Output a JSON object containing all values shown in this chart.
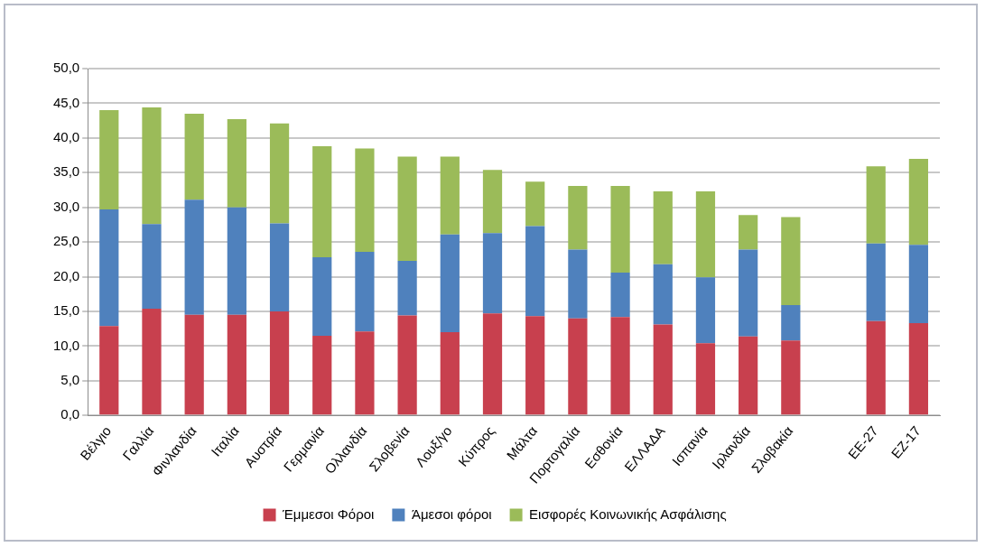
{
  "chart_data": {
    "type": "bar",
    "stacked": true,
    "categories": [
      "Βέλγιο",
      "Γαλλία",
      "Φινλανδία",
      "Ιταλία",
      "Αυστρία",
      "Γερμανία",
      "Ολλανδία",
      "Σλοβενία",
      "Λουξ/γο",
      "Κύπρος",
      "Μάλτα",
      "Πορτογαλία",
      "Εσθονία",
      "ΕΛΛΑΔΑ",
      "Ισπανία",
      "Ιρλανδία",
      "Σλοβακία",
      null,
      "ΕΕ-27",
      "ΕΖ-17"
    ],
    "series": [
      {
        "name": "Έμμεσοι Φόροι",
        "color": "#c8404e",
        "values": [
          12.9,
          15.4,
          14.5,
          14.5,
          15.0,
          11.5,
          12.1,
          14.4,
          12.0,
          14.7,
          14.3,
          14.0,
          14.2,
          13.1,
          10.4,
          11.4,
          10.8,
          null,
          13.6,
          13.3
        ]
      },
      {
        "name": "Άμεσοι φόροι",
        "color": "#4f81bd",
        "values": [
          16.8,
          12.2,
          16.6,
          15.5,
          12.7,
          11.3,
          11.5,
          7.9,
          14.1,
          11.6,
          13.0,
          9.9,
          6.4,
          8.7,
          9.5,
          12.5,
          5.1,
          null,
          11.2,
          11.3
        ]
      },
      {
        "name": "Εισφορές Κοινωνικής Ασφάλισης",
        "color": "#9bbb59",
        "values": [
          14.3,
          16.8,
          12.4,
          12.7,
          14.4,
          16.0,
          14.9,
          15.0,
          11.2,
          9.1,
          6.4,
          9.2,
          12.5,
          10.5,
          12.4,
          5.0,
          12.7,
          null,
          11.1,
          12.4
        ]
      }
    ],
    "ylim": [
      0,
      50
    ],
    "yticks": [
      {
        "value": 0,
        "label": "0,0"
      },
      {
        "value": 5,
        "label": "5,0"
      },
      {
        "value": 10,
        "label": "10,0"
      },
      {
        "value": 15,
        "label": "15,0"
      },
      {
        "value": 20,
        "label": "20,0"
      },
      {
        "value": 25,
        "label": "25,0"
      },
      {
        "value": 30,
        "label": "30,0"
      },
      {
        "value": 35,
        "label": "35,0"
      },
      {
        "value": 40,
        "label": "40,0"
      },
      {
        "value": 45,
        "label": "45,0"
      },
      {
        "value": 50,
        "label": "50,0"
      }
    ],
    "grid": "y",
    "legend": "bottom"
  }
}
